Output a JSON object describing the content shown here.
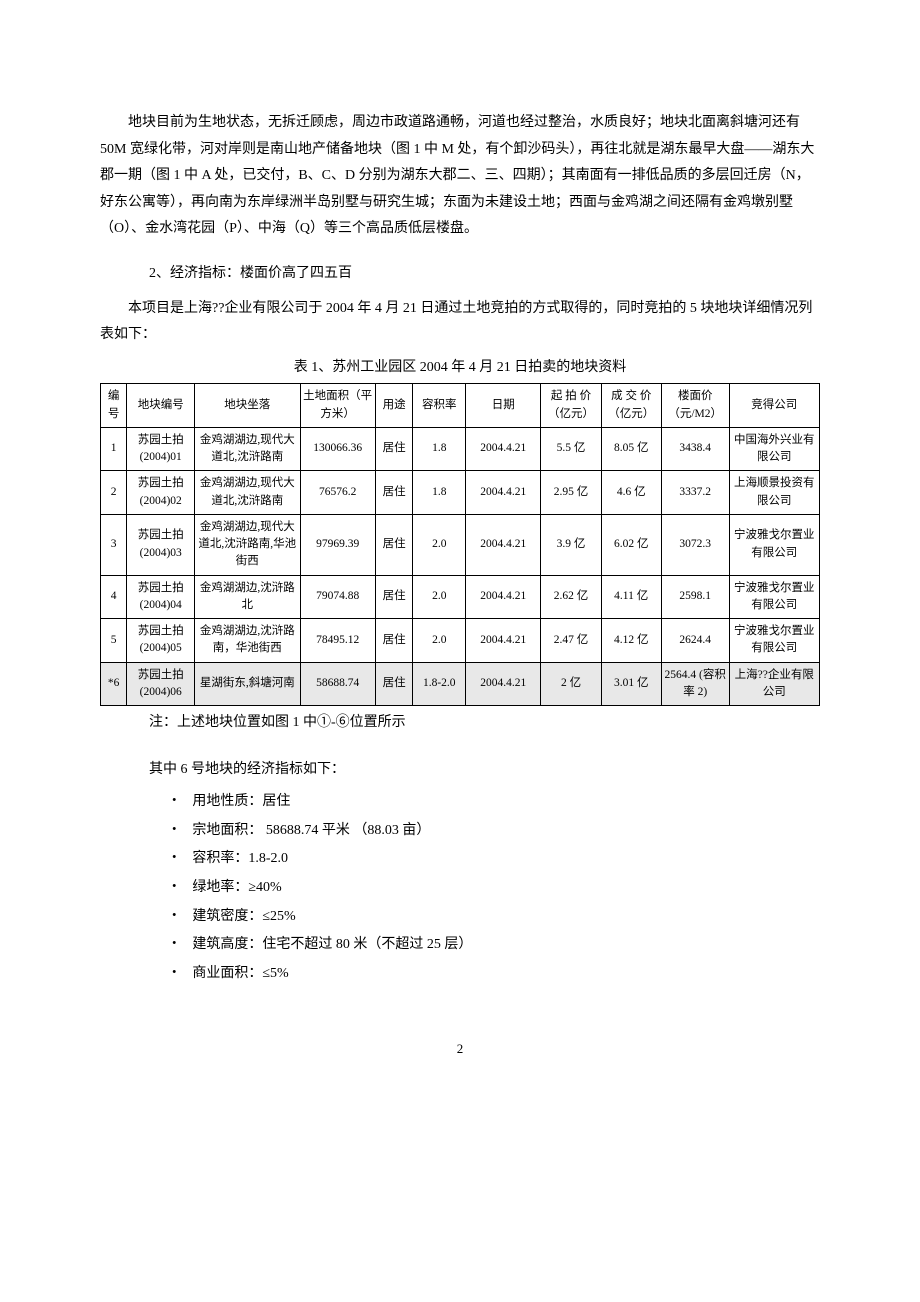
{
  "paragraph1": "地块目前为生地状态，无拆迁顾虑，周边市政道路通畅，河道也经过整治，水质良好；地块北面离斜塘河还有 50M 宽绿化带，河对岸则是南山地产储备地块（图 1 中 M 处，有个卸沙码头），再往北就是湖东最早大盘——湖东大郡一期（图 1 中 A 处，已交付，B、C、D 分别为湖东大郡二、三、四期）；其南面有一排低品质的多层回迁房（N，好东公寓等），再向南为东岸绿洲半岛别墅与研究生城；东面为未建设土地；西面与金鸡湖之间还隔有金鸡墩别墅（O）、金水湾花园（P）、中海（Q）等三个高品质低层楼盘。",
  "section2_heading": "2、经济指标：楼面价高了四五百",
  "paragraph2": "本项目是上海??企业有限公司于 2004 年 4 月 21 日通过土地竞拍的方式取得的，同时竞拍的 5 块地块详细情况列表如下：",
  "table_caption": "表 1、苏州工业园区 2004 年 4 月 21 日拍卖的地块资料",
  "table": {
    "columns": [
      "编号",
      "地块编号",
      "地块坐落",
      "土地面积（平方米）",
      "用途",
      "容积率",
      "日期",
      "起 拍 价（亿元）",
      "成 交 价（亿元）",
      "楼面价（元/M2）",
      "竞得公司"
    ],
    "rows": [
      {
        "num": "1",
        "code": "苏园土拍(2004)01",
        "loc": "金鸡湖湖边,现代大道北,沈浒路南",
        "area": "130066.36",
        "use": "居住",
        "far": "1.8",
        "date": "2004.4.21",
        "start": "5.5 亿",
        "deal": "8.05 亿",
        "floor": "3438.4",
        "comp": "中国海外兴业有限公司",
        "hl": false
      },
      {
        "num": "2",
        "code": "苏园土拍(2004)02",
        "loc": "金鸡湖湖边,现代大道北,沈浒路南",
        "area": "76576.2",
        "use": "居住",
        "far": "1.8",
        "date": "2004.4.21",
        "start": "2.95 亿",
        "deal": "4.6 亿",
        "floor": "3337.2",
        "comp": "上海顺景投资有限公司",
        "hl": false
      },
      {
        "num": "3",
        "code": "苏园土拍(2004)03",
        "loc": "金鸡湖湖边,现代大道北,沈浒路南,华池街西",
        "area": "97969.39",
        "use": "居住",
        "far": "2.0",
        "date": "2004.4.21",
        "start": "3.9 亿",
        "deal": "6.02 亿",
        "floor": "3072.3",
        "comp": "宁波雅戈尔置业有限公司",
        "hl": false
      },
      {
        "num": "4",
        "code": "苏园土拍(2004)04",
        "loc": "金鸡湖湖边,沈浒路北",
        "area": "79074.88",
        "use": "居住",
        "far": "2.0",
        "date": "2004.4.21",
        "start": "2.62 亿",
        "deal": "4.11 亿",
        "floor": "2598.1",
        "comp": "宁波雅戈尔置业有限公司",
        "hl": false
      },
      {
        "num": "5",
        "code": "苏园土拍(2004)05",
        "loc": "金鸡湖湖边,沈浒路南，华池街西",
        "area": "78495.12",
        "use": "居住",
        "far": "2.0",
        "date": "2004.4.21",
        "start": "2.47 亿",
        "deal": "4.12 亿",
        "floor": "2624.4",
        "comp": "宁波雅戈尔置业有限公司",
        "hl": false
      },
      {
        "num": "*6",
        "code": "苏园土拍(2004)06",
        "loc": "星湖街东,斜塘河南",
        "area": "58688.74",
        "use": "居住",
        "far": "1.8-2.0",
        "date": "2004.4.21",
        "start": "2 亿",
        "deal": "3.01 亿",
        "floor": "2564.4 (容积率 2)",
        "comp": "上海??企业有限公司",
        "hl": true
      }
    ]
  },
  "table_note": "注：上述地块位置如图 1 中①-⑥位置所示",
  "list_intro": "其中 6 号地块的经济指标如下：",
  "bullets": [
    "用地性质：居住",
    "宗地面积： 58688.74 平米 （88.03 亩）",
    "容积率：1.8-2.0",
    "绿地率：≥40%",
    "建筑密度：≤25%",
    "建筑高度：住宅不超过 80 米（不超过 25 层）",
    "商业面积：≤5%"
  ],
  "page_number": "2"
}
